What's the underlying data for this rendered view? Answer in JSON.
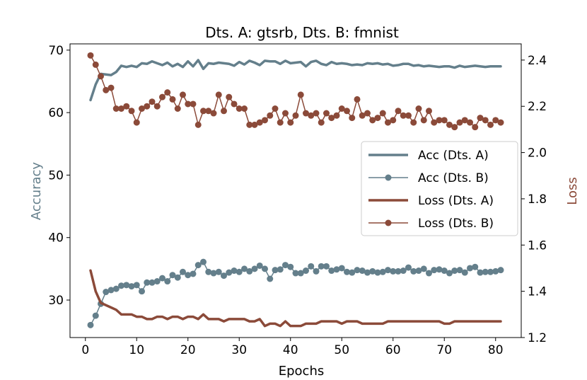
{
  "chart_data": {
    "type": "line",
    "title": "Dts. A: gtsrb, Dts. B: fmnist",
    "xlabel": "Epochs",
    "ylabel_left": "Accuracy",
    "ylabel_right": "Loss",
    "xlim": [
      -3,
      85
    ],
    "ylim_left": [
      24,
      71
    ],
    "ylim_right": [
      1.2,
      2.47
    ],
    "xticks": [
      0,
      10,
      20,
      30,
      40,
      50,
      60,
      70,
      80
    ],
    "yticks_left": [
      30,
      40,
      50,
      60,
      70
    ],
    "yticks_right": [
      1.2,
      1.4,
      1.6,
      1.8,
      2.0,
      2.2,
      2.4
    ],
    "grid": false,
    "legend_placement": "center-right",
    "colors": {
      "acc": "#647f8b",
      "loss": "#8b4a39"
    },
    "series": [
      {
        "name": "Acc (Dts. A)",
        "axis": "left",
        "color": "#647f8b",
        "marker": false,
        "x_start": 1,
        "values": [
          62.0,
          64.5,
          66.2,
          66.1,
          66.0,
          66.5,
          67.5,
          67.3,
          67.5,
          67.3,
          67.9,
          67.8,
          68.2,
          67.9,
          67.6,
          68.0,
          67.4,
          67.8,
          67.3,
          68.2,
          67.4,
          68.4,
          67.0,
          67.9,
          67.8,
          68.0,
          67.9,
          67.8,
          67.5,
          68.1,
          67.7,
          68.3,
          68.0,
          67.6,
          68.3,
          68.2,
          68.2,
          67.8,
          68.3,
          67.9,
          68.0,
          68.1,
          67.4,
          68.1,
          68.3,
          67.8,
          67.6,
          68.1,
          67.8,
          67.9,
          67.8,
          67.6,
          67.7,
          67.6,
          67.9,
          67.8,
          67.9,
          67.7,
          67.8,
          67.5,
          67.6,
          67.8,
          67.8,
          67.5,
          67.6,
          67.4,
          67.5,
          67.4,
          67.3,
          67.4,
          67.4,
          67.2,
          67.5,
          67.3,
          67.4,
          67.5,
          67.4,
          67.3,
          67.4,
          67.4,
          67.4
        ]
      },
      {
        "name": "Acc (Dts. B)",
        "axis": "left",
        "color": "#647f8b",
        "marker": true,
        "x_start": 1,
        "values": [
          26.0,
          27.5,
          29.4,
          31.3,
          31.6,
          31.8,
          32.3,
          32.4,
          32.2,
          32.4,
          31.4,
          32.8,
          32.8,
          33.0,
          33.5,
          33.0,
          34.0,
          33.6,
          34.5,
          34.0,
          34.2,
          35.6,
          36.1,
          34.5,
          34.3,
          34.5,
          33.9,
          34.4,
          34.7,
          34.5,
          35.0,
          34.6,
          35.0,
          35.5,
          35.0,
          33.4,
          34.8,
          34.9,
          35.6,
          35.3,
          34.3,
          34.3,
          34.7,
          35.4,
          34.6,
          35.4,
          35.4,
          34.7,
          34.9,
          35.1,
          34.5,
          34.4,
          34.8,
          34.7,
          34.4,
          34.6,
          34.4,
          34.5,
          34.8,
          34.6,
          34.6,
          34.7,
          35.2,
          34.6,
          34.7,
          35.0,
          34.3,
          34.8,
          34.9,
          34.7,
          34.3,
          34.7,
          34.8,
          34.4,
          35.1,
          35.3,
          34.4,
          34.5,
          34.5,
          34.6,
          34.8
        ]
      },
      {
        "name": "Loss (Dts. A)",
        "axis": "right",
        "color": "#8b4a39",
        "marker": false,
        "x_start": 1,
        "values": [
          1.49,
          1.4,
          1.35,
          1.34,
          1.33,
          1.32,
          1.3,
          1.3,
          1.3,
          1.29,
          1.29,
          1.28,
          1.28,
          1.29,
          1.29,
          1.28,
          1.29,
          1.29,
          1.28,
          1.29,
          1.29,
          1.28,
          1.3,
          1.28,
          1.28,
          1.28,
          1.27,
          1.28,
          1.28,
          1.28,
          1.28,
          1.27,
          1.27,
          1.28,
          1.25,
          1.26,
          1.26,
          1.25,
          1.27,
          1.25,
          1.25,
          1.25,
          1.26,
          1.26,
          1.26,
          1.27,
          1.27,
          1.27,
          1.27,
          1.26,
          1.27,
          1.27,
          1.27,
          1.26,
          1.26,
          1.26,
          1.26,
          1.26,
          1.27,
          1.27,
          1.27,
          1.27,
          1.27,
          1.27,
          1.27,
          1.27,
          1.27,
          1.27,
          1.27,
          1.26,
          1.26,
          1.27,
          1.27,
          1.27,
          1.27,
          1.27,
          1.27,
          1.27,
          1.27,
          1.27,
          1.27
        ]
      },
      {
        "name": "Loss (Dts. B)",
        "axis": "right",
        "color": "#8b4a39",
        "marker": true,
        "x_start": 1,
        "values": [
          2.42,
          2.38,
          2.33,
          2.27,
          2.28,
          2.19,
          2.19,
          2.2,
          2.18,
          2.13,
          2.19,
          2.2,
          2.22,
          2.2,
          2.24,
          2.26,
          2.23,
          2.19,
          2.25,
          2.21,
          2.21,
          2.12,
          2.18,
          2.18,
          2.17,
          2.25,
          2.18,
          2.24,
          2.21,
          2.19,
          2.19,
          2.12,
          2.12,
          2.13,
          2.14,
          2.16,
          2.19,
          2.13,
          2.17,
          2.13,
          2.16,
          2.25,
          2.17,
          2.16,
          2.17,
          2.13,
          2.17,
          2.15,
          2.16,
          2.19,
          2.18,
          2.15,
          2.23,
          2.16,
          2.17,
          2.14,
          2.15,
          2.17,
          2.13,
          2.14,
          2.18,
          2.16,
          2.16,
          2.13,
          2.19,
          2.14,
          2.18,
          2.13,
          2.14,
          2.14,
          2.12,
          2.11,
          2.13,
          2.14,
          2.13,
          2.11,
          2.15,
          2.14,
          2.12,
          2.14,
          2.13
        ]
      }
    ]
  }
}
